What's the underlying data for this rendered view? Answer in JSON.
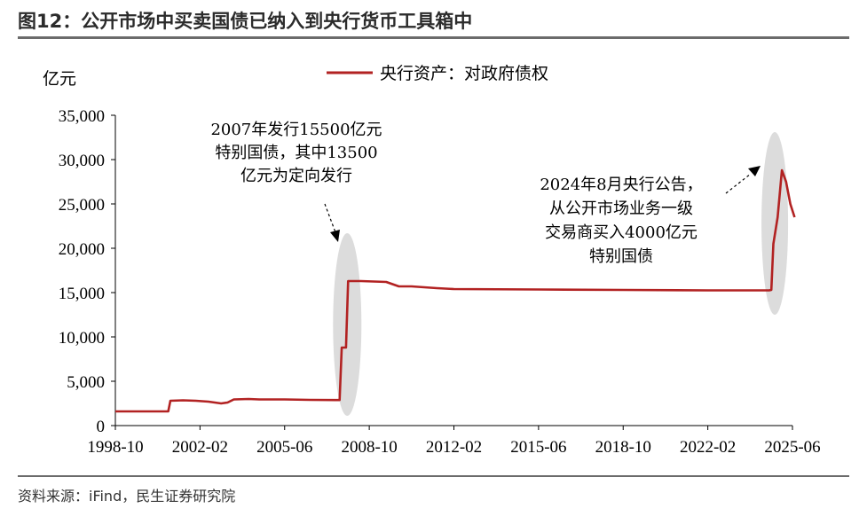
{
  "header": {
    "title": "图12：公开市场中买卖国债已纳入到央行货币工具箱中"
  },
  "footer": {
    "source": "资料来源：iFind，民生证券研究院"
  },
  "colors": {
    "line": "#B22222",
    "highlight": "#DCDCDC",
    "rule": "#6B6B6B"
  },
  "chart_data": {
    "type": "line",
    "title": "",
    "unit_label": "亿元",
    "legend": [
      {
        "name": "央行资产：对政府债权",
        "position": "top-center"
      }
    ],
    "x_ticks": [
      "1998-10",
      "2002-02",
      "2005-06",
      "2008-10",
      "2012-02",
      "2015-06",
      "2018-10",
      "2022-02",
      "2025-06"
    ],
    "y_ticks": [
      "0",
      "5,000",
      "10,000",
      "15,000",
      "20,000",
      "25,000",
      "30,000",
      "35,000"
    ],
    "ylim": [
      0,
      35000
    ],
    "xlim": [
      "1998-10",
      "2025-06"
    ],
    "grid": false,
    "series": [
      {
        "name": "央行资产：对政府债权",
        "points": [
          [
            "1998-10",
            1600
          ],
          [
            "2000-10",
            1600
          ],
          [
            "2000-11",
            1600
          ],
          [
            "2000-12",
            2800
          ],
          [
            "2001-06",
            2850
          ],
          [
            "2001-12",
            2800
          ],
          [
            "2002-06",
            2700
          ],
          [
            "2002-12",
            2500
          ],
          [
            "2003-03",
            2600
          ],
          [
            "2003-06",
            2950
          ],
          [
            "2004-01",
            3000
          ],
          [
            "2004-06",
            2950
          ],
          [
            "2005-06",
            2950
          ],
          [
            "2006-06",
            2900
          ],
          [
            "2007-06",
            2880
          ],
          [
            "2007-08",
            2880
          ],
          [
            "2007-09",
            8800
          ],
          [
            "2007-11",
            8800
          ],
          [
            "2007-12",
            16300
          ],
          [
            "2008-06",
            16300
          ],
          [
            "2009-06",
            16200
          ],
          [
            "2009-12",
            15700
          ],
          [
            "2010-06",
            15700
          ],
          [
            "2011-06",
            15500
          ],
          [
            "2012-02",
            15400
          ],
          [
            "2015-06",
            15350
          ],
          [
            "2018-10",
            15300
          ],
          [
            "2022-02",
            15250
          ],
          [
            "2024-07",
            15250
          ],
          [
            "2024-08",
            15300
          ],
          [
            "2024-09",
            20500
          ],
          [
            "2024-11",
            23500
          ],
          [
            "2025-01",
            28800
          ],
          [
            "2025-03",
            27500
          ],
          [
            "2025-05",
            25000
          ],
          [
            "2025-07",
            23500
          ]
        ]
      }
    ],
    "annotations": [
      {
        "lines": [
          "2007年发行15500亿元",
          "特别国债，其中13500",
          "亿元为定向发行"
        ],
        "target": "2007-12"
      },
      {
        "lines": [
          "2024年8月央行公告，",
          "从公开市场业务一级",
          "交易商买入4000亿元",
          "特别国债"
        ],
        "target": "2025-01"
      }
    ]
  }
}
